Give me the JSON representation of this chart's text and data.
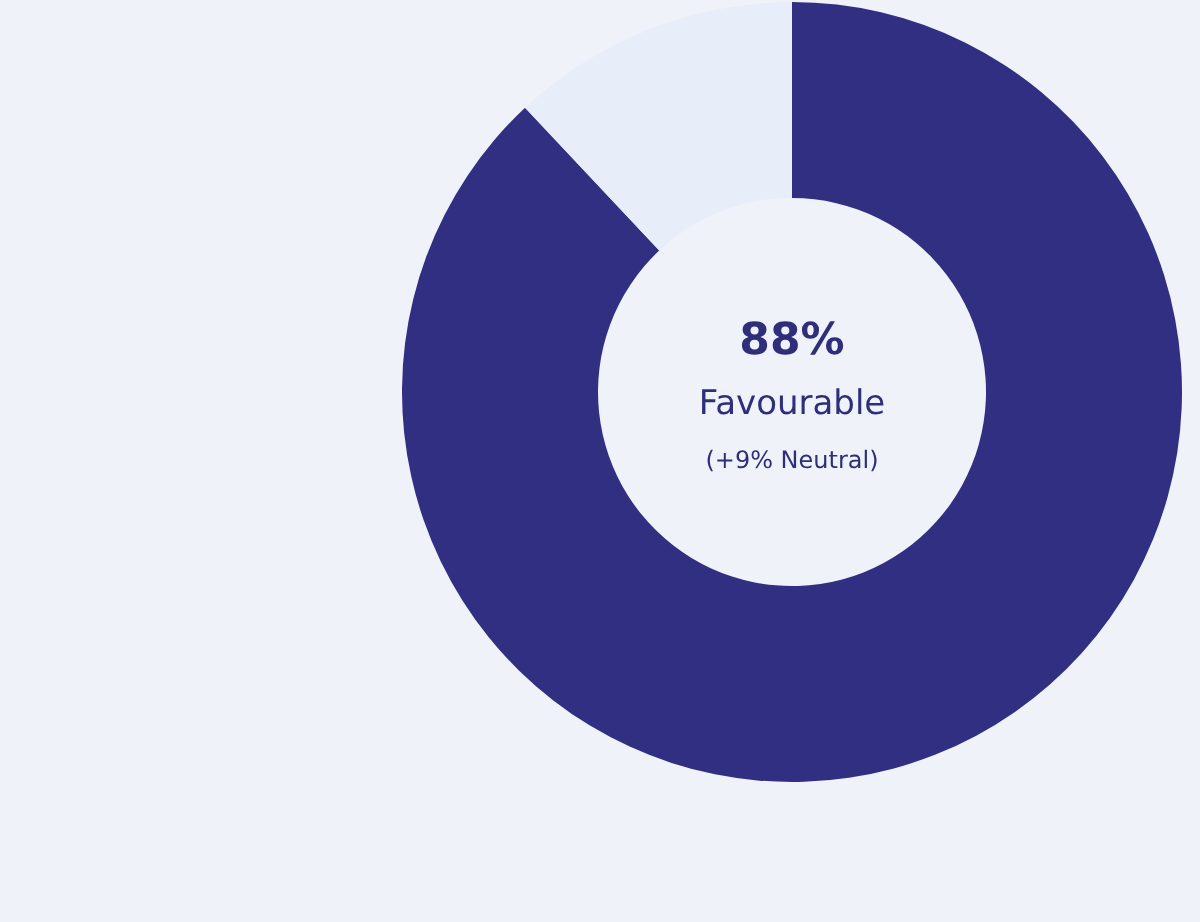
{
  "chart_data": {
    "type": "donut",
    "categories": [
      null,
      null
    ],
    "values": [
      88,
      12
    ],
    "colors": [
      "#312f82",
      "#e8eef9"
    ],
    "annotations": [
      "88%",
      "Favourable",
      "(+9% Neutral)"
    ]
  }
}
